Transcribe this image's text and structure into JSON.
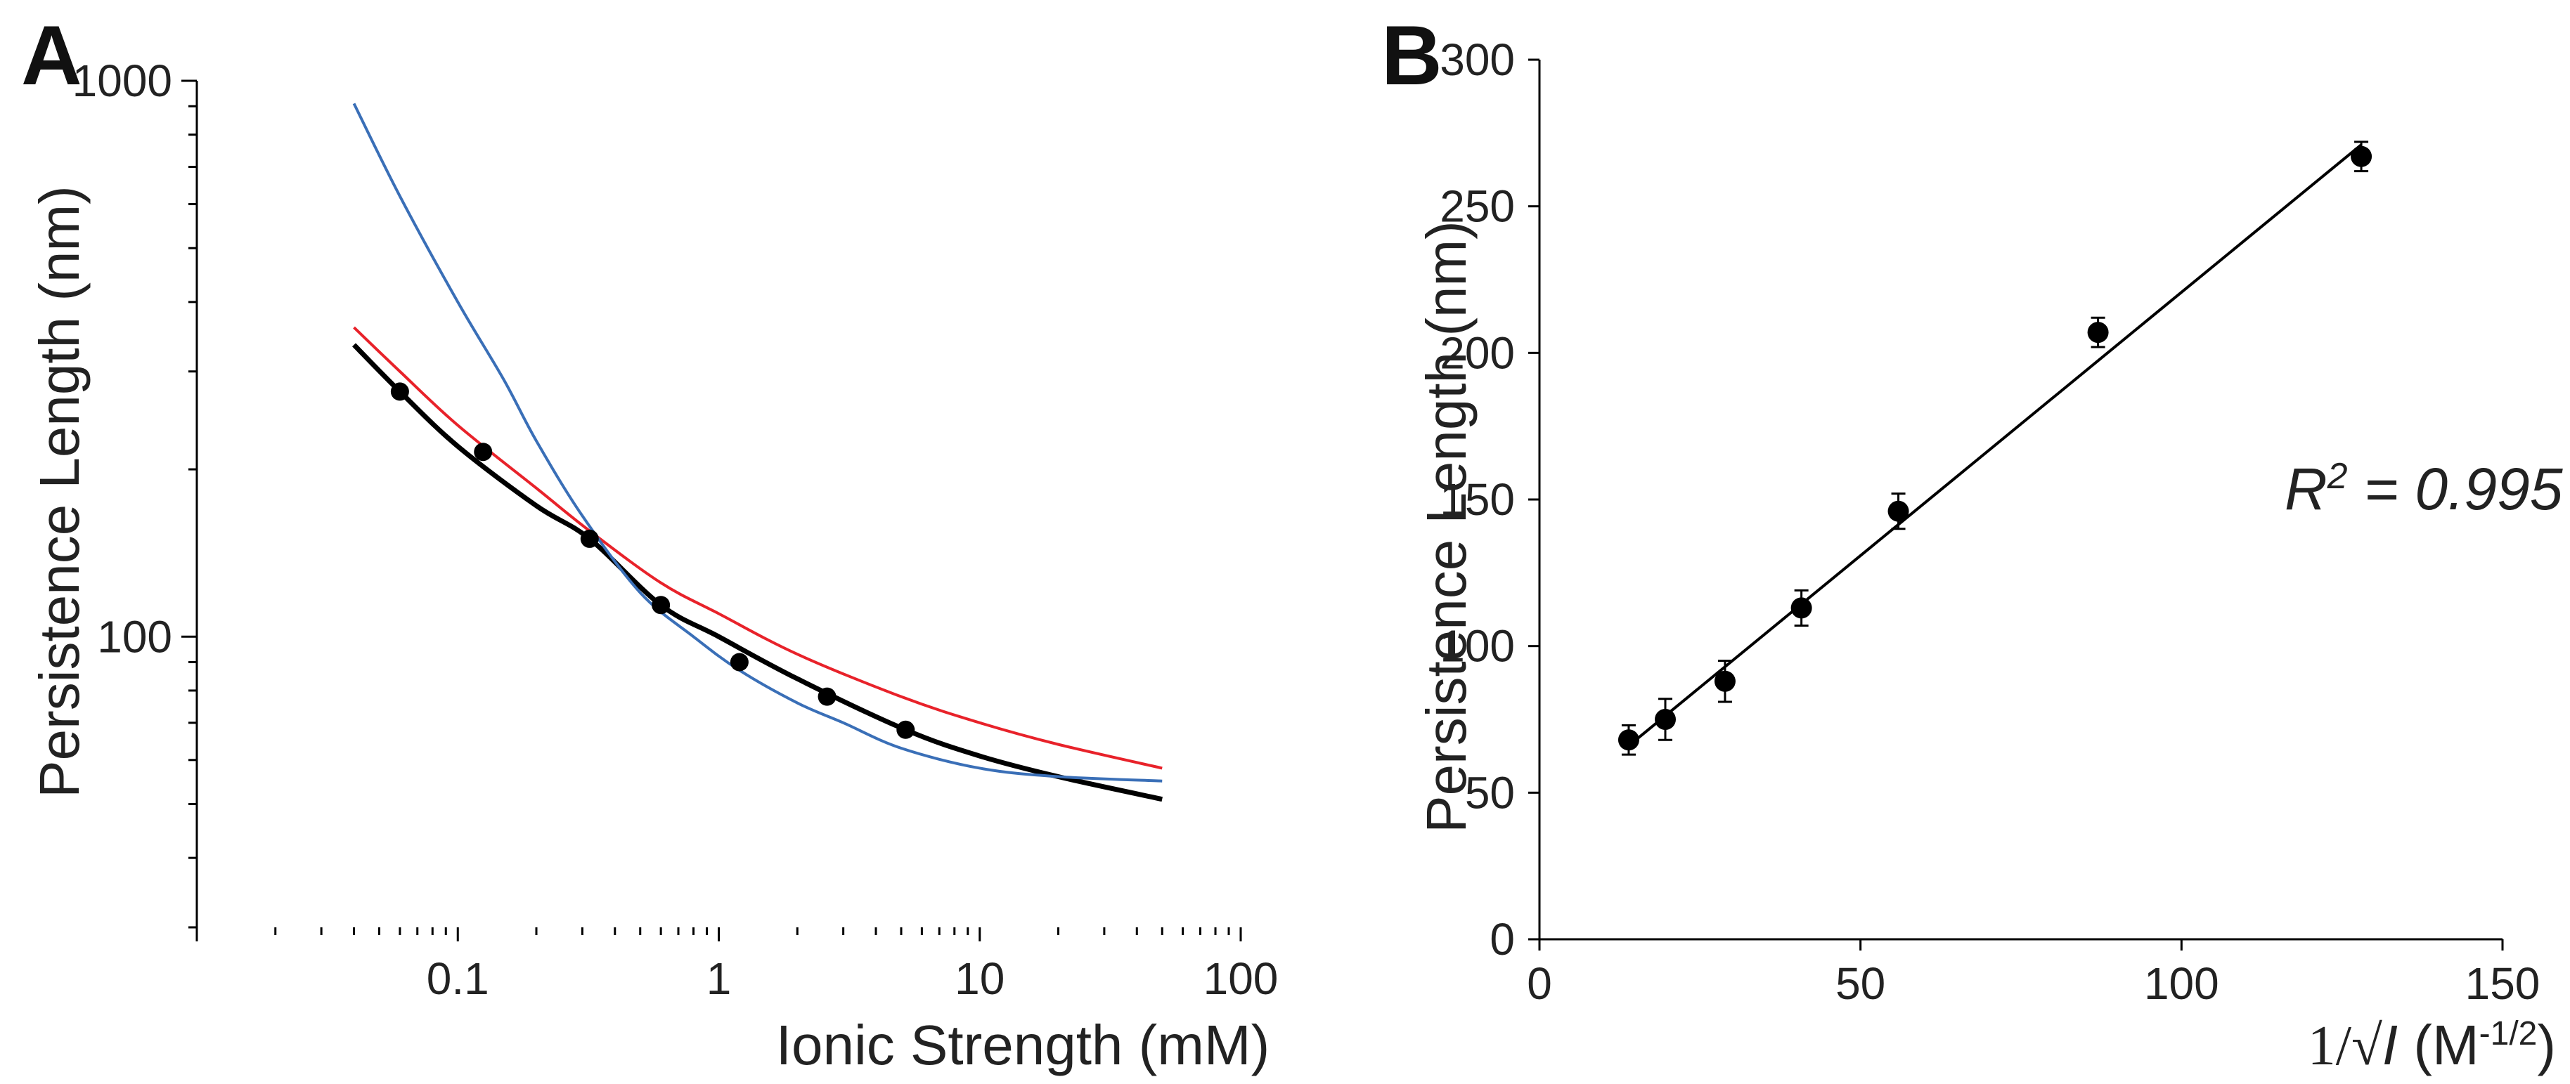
{
  "chart_data": [
    {
      "panel": "A",
      "type": "line",
      "xscale": "log",
      "yscale": "log",
      "xlim": [
        0.01,
        100
      ],
      "ylim": [
        30,
        1000
      ],
      "xlabel": "Ionic Strength (mM)",
      "ylabel": "Persistence Length (nm)",
      "x_tick_labels": [
        "0.1",
        "1",
        "10",
        "100"
      ],
      "y_tick_labels": [
        "100",
        "1000"
      ],
      "series": [
        {
          "name": "data",
          "kind": "scatter",
          "color": "#000000",
          "x": [
            0.06,
            0.125,
            0.32,
            0.6,
            1.2,
            2.6,
            5.2
          ],
          "y": [
            276,
            215,
            150,
            114,
            90,
            78,
            68
          ]
        },
        {
          "name": "black fit",
          "kind": "line",
          "color": "#000000",
          "x": [
            0.04,
            0.06,
            0.1,
            0.2,
            0.32,
            0.6,
            1,
            2,
            5.2,
            10,
            20,
            50
          ],
          "y": [
            335,
            276,
            220,
            172,
            150,
            114,
            100,
            84,
            68,
            61,
            56,
            51
          ]
        },
        {
          "name": "red fit",
          "kind": "line",
          "color": "#e8222a",
          "x": [
            0.04,
            0.06,
            0.1,
            0.2,
            0.32,
            0.6,
            1,
            2,
            5,
            10,
            20,
            50
          ],
          "y": [
            360,
            300,
            240,
            185,
            155,
            125,
            110,
            93,
            78,
            70,
            64,
            58
          ]
        },
        {
          "name": "blue fit",
          "kind": "line",
          "color": "#3a6fb7",
          "x": [
            0.04,
            0.06,
            0.1,
            0.15,
            0.2,
            0.3,
            0.5,
            0.8,
            1.2,
            2,
            3,
            5,
            10,
            20,
            50
          ],
          "y": [
            910,
            620,
            400,
            290,
            225,
            165,
            120,
            100,
            87,
            76,
            70,
            63,
            58,
            56,
            55
          ]
        }
      ]
    },
    {
      "panel": "B",
      "type": "scatter",
      "xlim": [
        0,
        150
      ],
      "ylim": [
        0,
        300
      ],
      "xlabel_main": "1/√",
      "xlabel_var": "I",
      "xlabel_unit_open": " (M",
      "xlabel_sup": "-1/2",
      "xlabel_unit_close": ")",
      "ylabel": "Persistence Length (nm)",
      "x_tick_labels": [
        "0",
        "50",
        "100",
        "150"
      ],
      "y_tick_labels": [
        "0",
        "50",
        "100",
        "150",
        "200",
        "250",
        "300"
      ],
      "annotation_prefix": "R",
      "annotation_sup": "2",
      "annotation_suffix": " = 0.995",
      "points": {
        "x": [
          13.9,
          19.6,
          28.9,
          40.8,
          55.9,
          87.0,
          128.0
        ],
        "y": [
          68,
          75,
          88,
          113,
          146,
          207,
          267
        ],
        "err": [
          5,
          7,
          7,
          6,
          6,
          5,
          5
        ]
      },
      "fit_line": {
        "x": [
          13.9,
          128.0
        ],
        "y": [
          66,
          271
        ]
      }
    }
  ]
}
